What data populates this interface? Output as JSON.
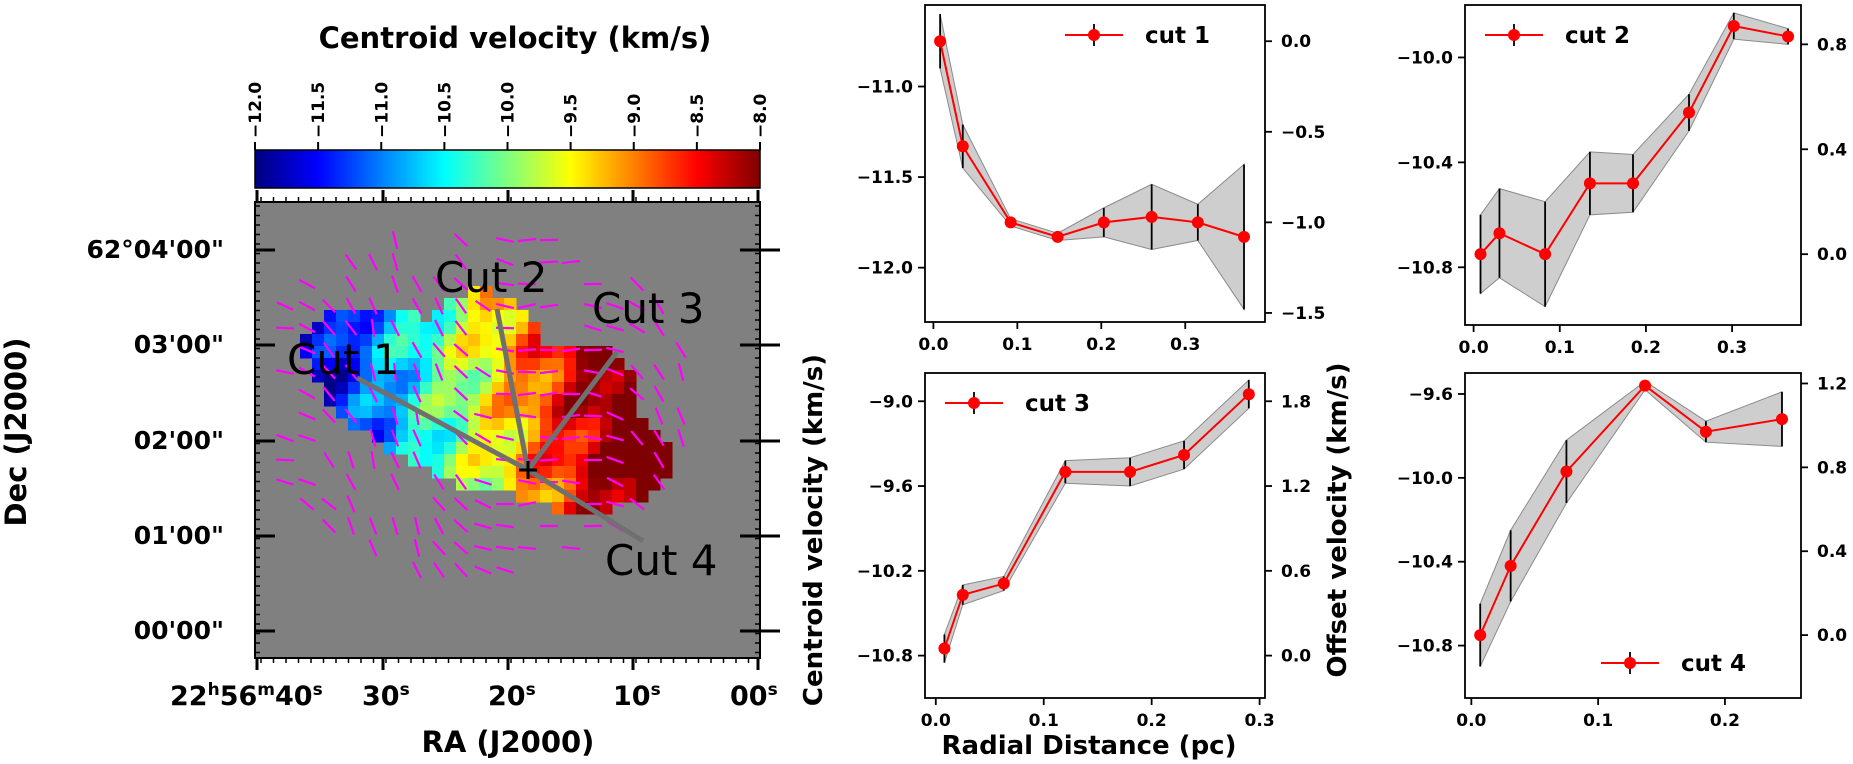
{
  "figure": {
    "shared_ylabel_left": "Centroid velocity (km/s)",
    "shared_ylabel_right": "Offset velocity (km/s)",
    "shared_xlabel": "Radial Distance (pc)"
  },
  "map": {
    "colorbar_title": "Centroid velocity (km/s)",
    "colorbar_ticks": [
      "−12.0",
      "−11.5",
      "−11.0",
      "−10.5",
      "−10.0",
      "−9.5",
      "−9.0",
      "−8.5",
      "−8.0"
    ],
    "colorbar_range": [
      -12.0,
      -8.0
    ],
    "colormap": [
      "#00007f",
      "#0000ff",
      "#007fff",
      "#00ffff",
      "#7fff7f",
      "#ffff00",
      "#ff7f00",
      "#ff0000",
      "#7f0000"
    ],
    "background_color": "#808080",
    "vector_color": "#ff00ff",
    "cut_line_color": "#707070",
    "xlabel": "RA (J2000)",
    "ylabel": "Dec (J2000)",
    "ra_ticks": [
      {
        "main": "22",
        "sup1": "h",
        "mid": "56",
        "sup2": "m",
        "sec": "40",
        "sup3": "s"
      },
      {
        "main": "30",
        "sup1": "s"
      },
      {
        "main": "20",
        "sup1": "s"
      },
      {
        "main": "10",
        "sup1": "s"
      },
      {
        "main": "00",
        "sup1": "s"
      }
    ],
    "dec_ticks": [
      "62°04'00\"",
      "03'00\"",
      "02'00\"",
      "01'00\"",
      "00'00\""
    ],
    "cut_labels": [
      "Cut 1",
      "Cut 2",
      "Cut 3",
      "Cut 4"
    ]
  },
  "chart_data": [
    {
      "type": "line",
      "legend": "cut 1",
      "legend_position": "top-right",
      "x": [
        0.008,
        0.035,
        0.092,
        0.148,
        0.203,
        0.26,
        0.315,
        0.37
      ],
      "y": [
        -10.75,
        -11.33,
        -11.75,
        -11.83,
        -11.75,
        -11.72,
        -11.75,
        -11.83
      ],
      "yerr": [
        0.15,
        0.12,
        0.02,
        0.02,
        0.08,
        0.18,
        0.1,
        0.4
      ],
      "xlim": [
        -0.01,
        0.395
      ],
      "ylim": [
        -12.3,
        -10.55
      ],
      "yticks": [
        -12.0,
        -11.5,
        -11.0
      ],
      "ytick_labels": [
        "−12.0",
        "−11.5",
        "−11.0"
      ],
      "xticks": [
        0.0,
        0.1,
        0.2,
        0.3
      ],
      "xtick_labels": [
        "0.0",
        "0.1",
        "0.2",
        "0.3"
      ],
      "offset_ticks": [
        0.0,
        -0.5,
        -1.0,
        -1.5
      ],
      "offset_tick_labels": [
        "0.0",
        "−0.5",
        "−1.0",
        "−1.5"
      ],
      "offset_zero": -10.75
    },
    {
      "type": "line",
      "legend": "cut 2",
      "legend_position": "top-left",
      "x": [
        0.008,
        0.03,
        0.083,
        0.135,
        0.185,
        0.25,
        0.302,
        0.365
      ],
      "y": [
        -10.75,
        -10.67,
        -10.75,
        -10.48,
        -10.48,
        -10.21,
        -9.88,
        -9.92
      ],
      "yerr": [
        0.15,
        0.17,
        0.2,
        0.12,
        0.11,
        0.07,
        0.05,
        0.03
      ],
      "xlim": [
        -0.01,
        0.38
      ],
      "ylim": [
        -11.02,
        -9.8
      ],
      "yticks": [
        -10.8,
        -10.4,
        -10.0
      ],
      "ytick_labels": [
        "−10.8",
        "−10.4",
        "−10.0"
      ],
      "xticks": [
        0.0,
        0.1,
        0.2,
        0.3
      ],
      "xtick_labels": [
        "0.0",
        "0.1",
        "0.2",
        "0.3"
      ],
      "offset_ticks": [
        0.0,
        0.4,
        0.8
      ],
      "offset_tick_labels": [
        "0.0",
        "0.4",
        "0.8"
      ],
      "offset_zero": -10.75
    },
    {
      "type": "line",
      "legend": "cut 3",
      "legend_position": "top-left",
      "x": [
        0.008,
        0.025,
        0.063,
        0.12,
        0.18,
        0.23,
        0.29
      ],
      "y": [
        -10.75,
        -10.37,
        -10.29,
        -9.5,
        -9.5,
        -9.38,
        -8.95
      ],
      "yerr": [
        0.1,
        0.07,
        0.05,
        0.08,
        0.1,
        0.1,
        0.1
      ],
      "xlim": [
        -0.01,
        0.305
      ],
      "ylim": [
        -11.1,
        -8.8
      ],
      "yticks": [
        -10.8,
        -10.2,
        -9.6,
        -9.0
      ],
      "ytick_labels": [
        "−10.8",
        "−10.2",
        "−9.6",
        "−9.0"
      ],
      "xticks": [
        0.0,
        0.1,
        0.2,
        0.3
      ],
      "xtick_labels": [
        "0.0",
        "0.1",
        "0.2",
        "0.3"
      ],
      "offset_ticks": [
        0.0,
        0.6,
        1.2,
        1.8
      ],
      "offset_tick_labels": [
        "0.0",
        "0.6",
        "1.2",
        "1.8"
      ],
      "offset_zero": -10.8
    },
    {
      "type": "line",
      "legend": "cut 4",
      "legend_position": "bottom-right",
      "x": [
        0.007,
        0.031,
        0.075,
        0.137,
        0.185,
        0.245
      ],
      "y": [
        -10.75,
        -10.42,
        -9.97,
        -9.56,
        -9.78,
        -9.72
      ],
      "yerr": [
        0.15,
        0.17,
        0.15,
        0.02,
        0.05,
        0.13
      ],
      "xlim": [
        -0.005,
        0.26
      ],
      "ylim": [
        -11.05,
        -9.5
      ],
      "yticks": [
        -10.8,
        -10.4,
        -10.0,
        -9.6
      ],
      "ytick_labels": [
        "−10.8",
        "−10.4",
        "−10.0",
        "−9.6"
      ],
      "xticks": [
        0.0,
        0.1,
        0.2
      ],
      "xtick_labels": [
        "0.0",
        "0.1",
        "0.2"
      ],
      "offset_ticks": [
        0.0,
        0.4,
        0.8,
        1.2
      ],
      "offset_tick_labels": [
        "0.0",
        "0.4",
        "0.8",
        "1.2"
      ],
      "offset_zero": -10.75
    }
  ]
}
